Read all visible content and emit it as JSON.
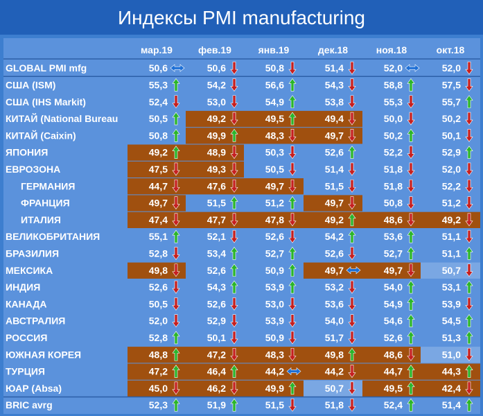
{
  "title": "Индексы PMI manufacturing",
  "chart_data": {
    "type": "table",
    "columns": [
      "мар.19",
      "фев.19",
      "янв.19",
      "дек.18",
      "ноя.18",
      "окт.18"
    ],
    "rows": [
      {
        "label": "GLOBAL PMI mfg",
        "values": [
          50.6,
          50.6,
          50.8,
          51.4,
          52.0,
          52.0
        ],
        "trend": [
          "flat",
          "down",
          "down",
          "down",
          "flat",
          "down"
        ],
        "fill": [
          0,
          0,
          0,
          0,
          0,
          0
        ]
      },
      {
        "label": "США (ISM)",
        "values": [
          55.3,
          54.2,
          56.6,
          54.3,
          58.8,
          57.5
        ],
        "trend": [
          "up",
          "down",
          "up",
          "down",
          "up",
          "down"
        ],
        "fill": [
          0,
          0,
          0,
          0,
          0,
          0
        ]
      },
      {
        "label": "США (IHS Markit)",
        "values": [
          52.4,
          53.0,
          54.9,
          53.8,
          55.3,
          55.7
        ],
        "trend": [
          "down",
          "down",
          "up",
          "down",
          "down",
          "up"
        ],
        "fill": [
          0,
          0,
          0,
          0,
          0,
          0
        ]
      },
      {
        "label": "КИТАЙ (National Bureau",
        "values": [
          50.5,
          49.2,
          49.5,
          49.4,
          50.0,
          50.2
        ],
        "trend": [
          "up",
          "down",
          "up",
          "down",
          "down",
          "down"
        ],
        "fill": [
          0,
          1,
          1,
          1,
          0,
          0
        ]
      },
      {
        "label": "КИТАЙ (Caixin)",
        "values": [
          50.8,
          49.9,
          48.3,
          49.7,
          50.2,
          50.1
        ],
        "trend": [
          "up",
          "up",
          "down",
          "down",
          "up",
          "down"
        ],
        "fill": [
          0,
          1,
          1,
          1,
          0,
          0
        ]
      },
      {
        "label": "ЯПОНИЯ",
        "values": [
          49.2,
          48.9,
          50.3,
          52.6,
          52.2,
          52.9
        ],
        "trend": [
          "up",
          "down",
          "down",
          "up",
          "down",
          "up"
        ],
        "fill": [
          1,
          1,
          0,
          0,
          0,
          0
        ]
      },
      {
        "label": "ЕВРОЗОНА",
        "values": [
          47.5,
          49.3,
          50.5,
          51.4,
          51.8,
          52.0
        ],
        "trend": [
          "down",
          "down",
          "down",
          "down",
          "down",
          "down"
        ],
        "fill": [
          1,
          1,
          0,
          0,
          0,
          0
        ]
      },
      {
        "label": "ГЕРМАНИЯ",
        "values": [
          44.7,
          47.6,
          49.7,
          51.5,
          51.8,
          52.2
        ],
        "trend": [
          "down",
          "down",
          "down",
          "down",
          "down",
          "down"
        ],
        "fill": [
          1,
          1,
          1,
          0,
          0,
          0
        ],
        "indent": true
      },
      {
        "label": "ФРАНЦИЯ",
        "values": [
          49.7,
          51.5,
          51.2,
          49.7,
          50.8,
          51.2
        ],
        "trend": [
          "down",
          "up",
          "up",
          "down",
          "down",
          "down"
        ],
        "fill": [
          1,
          0,
          0,
          1,
          0,
          0
        ],
        "indent": true
      },
      {
        "label": "ИТАЛИЯ",
        "values": [
          47.4,
          47.7,
          47.8,
          49.2,
          48.6,
          49.2
        ],
        "trend": [
          "down",
          "down",
          "down",
          "up",
          "down",
          "down"
        ],
        "fill": [
          1,
          1,
          1,
          1,
          1,
          1
        ],
        "indent": true
      },
      {
        "label": "ВЕЛИКОБРИТАНИЯ",
        "values": [
          55.1,
          52.1,
          52.6,
          54.2,
          53.6,
          51.1
        ],
        "trend": [
          "up",
          "down",
          "down",
          "up",
          "up",
          "down"
        ],
        "fill": [
          0,
          0,
          0,
          0,
          0,
          0
        ]
      },
      {
        "label": "БРАЗИЛИЯ",
        "values": [
          52.8,
          53.4,
          52.7,
          52.6,
          52.7,
          51.1
        ],
        "trend": [
          "down",
          "up",
          "up",
          "down",
          "up",
          "up"
        ],
        "fill": [
          0,
          0,
          0,
          0,
          0,
          0
        ]
      },
      {
        "label": "МЕКСИКА",
        "values": [
          49.8,
          52.6,
          50.9,
          49.7,
          49.7,
          50.7
        ],
        "trend": [
          "down",
          "up",
          "up",
          "flat",
          "down",
          "down"
        ],
        "fill": [
          1,
          0,
          0,
          1,
          1,
          2
        ]
      },
      {
        "label": "ИНДИЯ",
        "values": [
          52.6,
          54.3,
          53.9,
          53.2,
          54.0,
          53.1
        ],
        "trend": [
          "down",
          "up",
          "up",
          "down",
          "up",
          "up"
        ],
        "fill": [
          0,
          0,
          0,
          0,
          0,
          0
        ]
      },
      {
        "label": "КАНАДА",
        "values": [
          50.5,
          52.6,
          53.0,
          53.6,
          54.9,
          53.9
        ],
        "trend": [
          "down",
          "down",
          "down",
          "down",
          "up",
          "down"
        ],
        "fill": [
          0,
          0,
          0,
          0,
          0,
          0
        ]
      },
      {
        "label": "АВСТРАЛИЯ",
        "values": [
          52.0,
          52.9,
          53.9,
          54.0,
          54.6,
          54.5
        ],
        "trend": [
          "down",
          "down",
          "down",
          "down",
          "up",
          "up"
        ],
        "fill": [
          0,
          0,
          0,
          0,
          0,
          0
        ]
      },
      {
        "label": "РОССИЯ",
        "values": [
          52.8,
          50.1,
          50.9,
          51.7,
          52.6,
          51.3
        ],
        "trend": [
          "up",
          "down",
          "down",
          "down",
          "up",
          "up"
        ],
        "fill": [
          0,
          0,
          0,
          0,
          0,
          0
        ]
      },
      {
        "label": "ЮЖНАЯ КОРЕЯ",
        "values": [
          48.8,
          47.2,
          48.3,
          49.8,
          48.6,
          51.0
        ],
        "trend": [
          "up",
          "down",
          "down",
          "up",
          "down",
          "down"
        ],
        "fill": [
          1,
          1,
          1,
          1,
          1,
          2
        ]
      },
      {
        "label": "ТУРЦИЯ",
        "values": [
          47.2,
          46.4,
          44.2,
          44.2,
          44.7,
          44.3
        ],
        "trend": [
          "up",
          "up",
          "flat",
          "down",
          "up",
          "up"
        ],
        "fill": [
          1,
          1,
          1,
          1,
          1,
          1
        ]
      },
      {
        "label": "ЮАР (Absa)",
        "values": [
          45.0,
          46.2,
          49.9,
          50.7,
          49.5,
          42.4
        ],
        "trend": [
          "down",
          "down",
          "up",
          "down",
          "up",
          "down"
        ],
        "fill": [
          1,
          1,
          1,
          2,
          1,
          1
        ]
      },
      {
        "label": "BRIC avrg",
        "values": [
          52.3,
          51.9,
          51.5,
          51.8,
          52.4,
          51.4
        ],
        "trend": [
          "up",
          "up",
          "down",
          "down",
          "up",
          "up"
        ],
        "fill": [
          0,
          0,
          0,
          0,
          0,
          0
        ]
      }
    ]
  },
  "colors": {
    "title_bg": "#2160b8",
    "cell_bg": "#5b92dc",
    "contraction_fill": "#a0500f",
    "light_fill": "#7aa7e3",
    "text": "#ffffff",
    "up_arrow": "#2ab52a",
    "down_arrow": "#c51f1f",
    "flat_arrow": "#1d6fd6"
  }
}
